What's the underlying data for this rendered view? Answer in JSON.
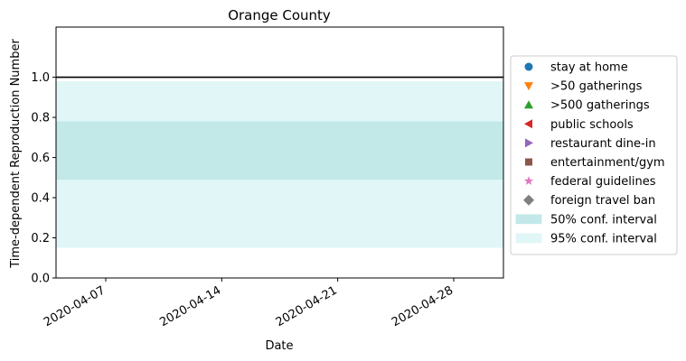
{
  "chart_data": {
    "type": "area",
    "title": "Orange County",
    "xlabel": "Date",
    "ylabel": "Time-dependent Reproduction Number",
    "x_range": [
      "2020-04-04",
      "2020-05-01"
    ],
    "ylim": [
      0,
      1.25
    ],
    "y_ticks": [
      0.0,
      0.2,
      0.4,
      0.6,
      0.8,
      1.0
    ],
    "y_tick_labels": [
      "0.0",
      "0.2",
      "0.4",
      "0.6",
      "0.8",
      "1.0"
    ],
    "x_ticks": [
      "2020-04-07",
      "2020-04-14",
      "2020-04-21",
      "2020-04-28"
    ],
    "grid": false,
    "reference_line": {
      "y": 1.0,
      "color": "#000000"
    },
    "bands": [
      {
        "name": "95% conf. interval",
        "lower": 0.15,
        "upper": 0.98,
        "color": "#e0f6f7"
      },
      {
        "name": "50% conf. interval",
        "lower": 0.49,
        "upper": 0.78,
        "color": "#c2e8e8"
      }
    ],
    "legend_position": "center-right, outside plot",
    "legend": [
      {
        "label": "stay at home",
        "marker": "circle",
        "color": "#1f77b4"
      },
      {
        "label": ">50 gatherings",
        "marker": "triangle-down",
        "color": "#ff7f0e"
      },
      {
        "label": ">500 gatherings",
        "marker": "triangle-up",
        "color": "#2ca02c"
      },
      {
        "label": "public schools",
        "marker": "triangle-left",
        "color": "#d62728"
      },
      {
        "label": "restaurant dine-in",
        "marker": "triangle-right",
        "color": "#9467bd"
      },
      {
        "label": "entertainment/gym",
        "marker": "square",
        "color": "#8c564b"
      },
      {
        "label": "federal guidelines",
        "marker": "star",
        "color": "#e377c2"
      },
      {
        "label": "foreign travel ban",
        "marker": "diamond",
        "color": "#7f7f7f"
      },
      {
        "label": "50% conf. interval",
        "marker": "patch",
        "color": "#c2e8e8"
      },
      {
        "label": "95% conf. interval",
        "marker": "patch",
        "color": "#e0f6f7"
      }
    ]
  }
}
